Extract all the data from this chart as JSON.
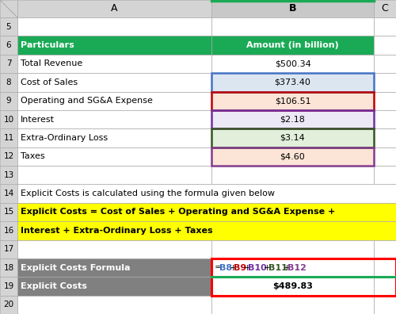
{
  "figsize": [
    5.0,
    3.96
  ],
  "dpi": 100,
  "header_bg": "#d4d4d4",
  "col_B_header_bg": "#c0c0c0",
  "green": "#1aaa55",
  "rows": [
    {
      "label": "5",
      "A": "",
      "B": "",
      "A_bg": "#ffffff",
      "B_bg": "#ffffff",
      "A_color": "#000000",
      "B_color": "#000000",
      "A_bold": false,
      "B_bold": false,
      "span_AB": false
    },
    {
      "label": "6",
      "A": "Particulars",
      "B": "Amount (in billion)",
      "A_bg": "#1aaa55",
      "B_bg": "#1aaa55",
      "A_color": "#ffffff",
      "B_color": "#ffffff",
      "A_bold": true,
      "B_bold": true,
      "span_AB": false
    },
    {
      "label": "7",
      "A": "Total Revenue",
      "B": "$500.34",
      "A_bg": "#ffffff",
      "B_bg": "#ffffff",
      "A_color": "#000000",
      "B_color": "#000000",
      "A_bold": false,
      "B_bold": false,
      "span_AB": false
    },
    {
      "label": "8",
      "A": "Cost of Sales",
      "B": "$373.40",
      "A_bg": "#ffffff",
      "B_bg": "#dce6f1",
      "A_color": "#000000",
      "B_color": "#000000",
      "A_bold": false,
      "B_bold": false,
      "span_AB": false
    },
    {
      "label": "9",
      "A": "Operating and SG&A Expense",
      "B": "$106.51",
      "A_bg": "#ffffff",
      "B_bg": "#fce4d6",
      "A_color": "#000000",
      "B_color": "#000000",
      "A_bold": false,
      "B_bold": false,
      "span_AB": false
    },
    {
      "label": "10",
      "A": "Interest",
      "B": "$2.18",
      "A_bg": "#ffffff",
      "B_bg": "#ede8f5",
      "A_color": "#000000",
      "B_color": "#000000",
      "A_bold": false,
      "B_bold": false,
      "span_AB": false
    },
    {
      "label": "11",
      "A": "Extra-Ordinary Loss",
      "B": "$3.14",
      "A_bg": "#ffffff",
      "B_bg": "#e2efda",
      "A_color": "#000000",
      "B_color": "#000000",
      "A_bold": false,
      "B_bold": false,
      "span_AB": false
    },
    {
      "label": "12",
      "A": "Taxes",
      "B": "$4.60",
      "A_bg": "#ffffff",
      "B_bg": "#fce4d6",
      "A_color": "#000000",
      "B_color": "#000000",
      "A_bold": false,
      "B_bold": false,
      "span_AB": false
    },
    {
      "label": "13",
      "A": "",
      "B": "",
      "A_bg": "#ffffff",
      "B_bg": "#ffffff",
      "A_color": "#000000",
      "B_color": "#000000",
      "A_bold": false,
      "B_bold": false,
      "span_AB": false
    },
    {
      "label": "14",
      "A": "Explicit Costs is calculated using the formula given below",
      "B": "",
      "A_bg": "#ffffff",
      "B_bg": "#ffffff",
      "A_color": "#000000",
      "B_color": "#000000",
      "A_bold": false,
      "B_bold": false,
      "span_AB": true
    },
    {
      "label": "15",
      "A": "Explicit Costs = Cost of Sales + Operating and SG&A Expense +",
      "B": "",
      "A_bg": "#ffff00",
      "B_bg": "#ffff00",
      "A_color": "#000000",
      "B_color": "#000000",
      "A_bold": true,
      "B_bold": false,
      "span_AB": true
    },
    {
      "label": "16",
      "A": "Interest + Extra-Ordinary Loss + Taxes",
      "B": "",
      "A_bg": "#ffff00",
      "B_bg": "#ffff00",
      "A_color": "#000000",
      "B_color": "#000000",
      "A_bold": true,
      "B_bold": false,
      "span_AB": true
    },
    {
      "label": "17",
      "A": "",
      "B": "",
      "A_bg": "#ffffff",
      "B_bg": "#ffffff",
      "A_color": "#000000",
      "B_color": "#000000",
      "A_bold": false,
      "B_bold": false,
      "span_AB": false
    },
    {
      "label": "18",
      "A": "Explicit Costs Formula",
      "B": "formula",
      "A_bg": "#808080",
      "B_bg": "#ffffff",
      "A_color": "#ffffff",
      "B_color": "#000000",
      "A_bold": true,
      "B_bold": false,
      "span_AB": false
    },
    {
      "label": "19",
      "A": "Explicit Costs",
      "B": "$489.83",
      "A_bg": "#808080",
      "B_bg": "#ffffff",
      "A_color": "#ffffff",
      "B_color": "#000000",
      "A_bold": true,
      "B_bold": true,
      "span_AB": false
    },
    {
      "label": "20",
      "A": "",
      "B": "",
      "A_bg": "#ffffff",
      "B_bg": "#ffffff",
      "A_color": "#000000",
      "B_color": "#000000",
      "A_bold": false,
      "B_bold": false,
      "span_AB": false
    }
  ],
  "colored_borders": [
    {
      "row_label": "8",
      "color": "#4472c4",
      "lw": 1.8
    },
    {
      "row_label": "9",
      "color": "#c00000",
      "lw": 1.8
    },
    {
      "row_label": "10",
      "color": "#7030a0",
      "lw": 1.8
    },
    {
      "row_label": "11",
      "color": "#375623",
      "lw": 1.8
    },
    {
      "row_label": "12",
      "color": "#833c8c",
      "lw": 1.8
    }
  ],
  "formula_parts": [
    {
      "text": "=",
      "color": "#000000",
      "bold": false
    },
    {
      "text": "B8",
      "color": "#4472c4",
      "bold": true
    },
    {
      "text": "+",
      "color": "#000000",
      "bold": false
    },
    {
      "text": "B9",
      "color": "#c00000",
      "bold": true
    },
    {
      "text": "+",
      "color": "#000000",
      "bold": false
    },
    {
      "text": "B10",
      "color": "#7030a0",
      "bold": true
    },
    {
      "text": "+",
      "color": "#000000",
      "bold": false
    },
    {
      "text": "B11",
      "color": "#375623",
      "bold": true
    },
    {
      "text": "+",
      "color": "#000000",
      "bold": false
    },
    {
      "text": "B12",
      "color": "#833c8c",
      "bold": true
    }
  ],
  "red_border_color": "#ff0000",
  "red_border_lw": 2.2,
  "green_underline_color": "#1aaa55",
  "green_underline_lw": 2.2
}
